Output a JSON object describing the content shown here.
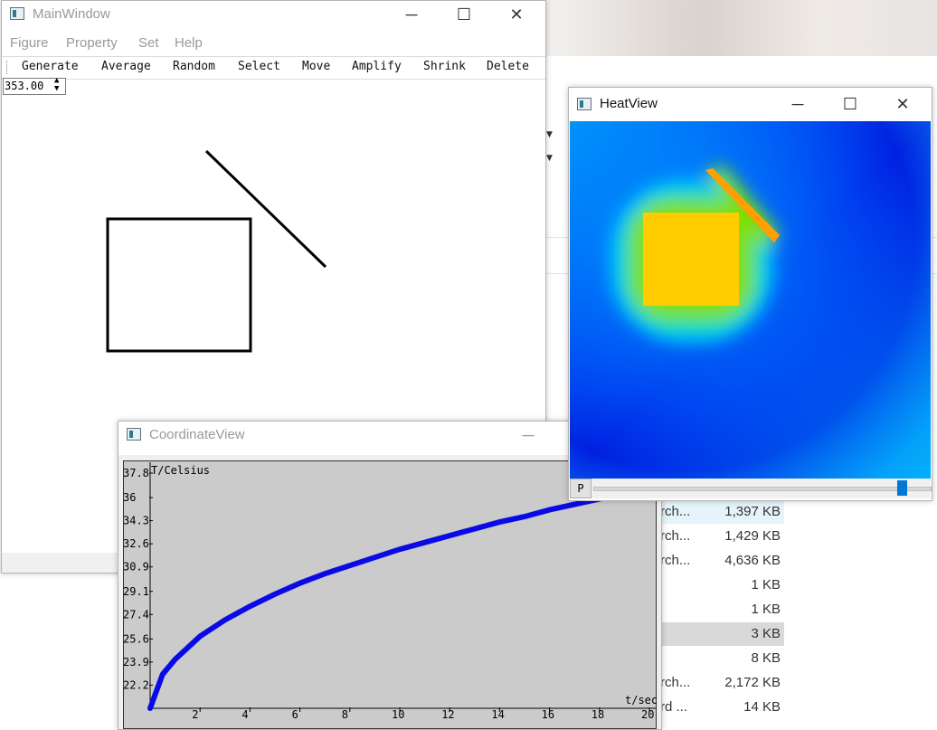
{
  "main_window": {
    "title": "MainWindow",
    "menu": [
      "Figure",
      "Property",
      "Set",
      "Help"
    ],
    "toolbar": [
      "Generate",
      "Average",
      "Random",
      "Select",
      "Move",
      "Amplify",
      "Shrink",
      "Delete"
    ],
    "spin_value": "353.00"
  },
  "coord_window": {
    "title": "CoordinateView",
    "y_label": "T/Celsius",
    "x_label": "t/sec",
    "y_ticks": [
      "37.8",
      "36",
      "34.3",
      "32.6",
      "30.9",
      "29.1",
      "27.4",
      "25.6",
      "23.9",
      "22.2"
    ],
    "x_ticks": [
      "2",
      "4",
      "6",
      "8",
      "10",
      "12",
      "14",
      "16",
      "18",
      "20"
    ],
    "line_color": "#0a0ae6",
    "bg_color": "#cbcbcb"
  },
  "chart_data": {
    "type": "line",
    "title": "",
    "xlabel": "t/sec",
    "ylabel": "T/Celsius",
    "xlim": [
      0,
      20
    ],
    "ylim": [
      20.5,
      38.2
    ],
    "series": [
      {
        "x": [
          0,
          0.5,
          1,
          2,
          3,
          4,
          5,
          6,
          7,
          8,
          9,
          10,
          11,
          12,
          13,
          14,
          15,
          16,
          17,
          18,
          19,
          20
        ],
        "values": [
          20.5,
          23.0,
          24.1,
          25.8,
          27.0,
          28.0,
          28.9,
          29.7,
          30.4,
          31.0,
          31.6,
          32.2,
          32.7,
          33.2,
          33.7,
          34.2,
          34.6,
          35.1,
          35.5,
          35.9,
          36.3,
          36.7
        ]
      }
    ]
  },
  "heat_window": {
    "title": "HeatView",
    "button_label": "P",
    "slider_value": 0.93,
    "colors": {
      "hot": "#ffcc00",
      "warm": "#80e000",
      "mid": "#00e0ff",
      "cool": "#0066ff",
      "cold": "#0010e0"
    }
  },
  "explorer_files": [
    {
      "name": "rch...",
      "size": "1,397 KB",
      "state": "selected"
    },
    {
      "name": "rch...",
      "size": "1,429 KB",
      "state": ""
    },
    {
      "name": "rch...",
      "size": "4,636 KB",
      "state": ""
    },
    {
      "name": "",
      "size": "1 KB",
      "state": ""
    },
    {
      "name": "",
      "size": "1 KB",
      "state": ""
    },
    {
      "name": "",
      "size": "3 KB",
      "state": "gray"
    },
    {
      "name": "",
      "size": "8 KB",
      "state": ""
    },
    {
      "name": "rch...",
      "size": "2,172 KB",
      "state": ""
    },
    {
      "name": "rd ...",
      "size": "14 KB",
      "state": ""
    }
  ]
}
